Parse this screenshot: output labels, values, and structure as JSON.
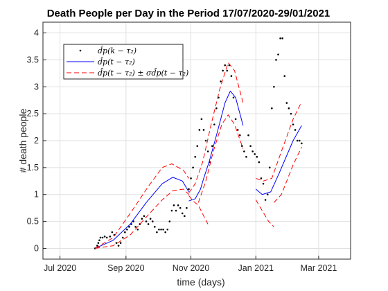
{
  "chart_data": {
    "type": "line",
    "title": "Death People per Day in the Period 17/07/2020-29/01/2021",
    "xlabel": "time (days)",
    "ylabel": "# death people",
    "xlim": [
      "2020-06-15",
      "2021-03-31"
    ],
    "ylim": [
      -0.2,
      4.2
    ],
    "x_ticks": [
      {
        "date": "2020-07-01",
        "label": "Jul 2020"
      },
      {
        "date": "2020-09-01",
        "label": "Sep 2020"
      },
      {
        "date": "2020-11-01",
        "label": "Nov 2020"
      },
      {
        "date": "2021-01-01",
        "label": "Jan 2021"
      },
      {
        "date": "2021-03-01",
        "label": "Mar 2021"
      }
    ],
    "y_ticks": [
      0,
      0.5,
      1,
      1.5,
      2,
      2.5,
      3,
      3.5,
      4
    ],
    "y_tick_labels": [
      "0",
      "0.5",
      "1",
      "1.5",
      "2",
      "2.5",
      "3",
      "3.5",
      "4"
    ],
    "grid": true,
    "legend": {
      "position": "top-left",
      "entries": [
        "d̄p(k − τ₂)",
        "d̄p(t − τ₂)",
        "d̄p(t − τ₂) ± σd̄p(t − τ₂)"
      ]
    },
    "series": [
      {
        "style": "markers",
        "color": "#000000",
        "points": [
          [
            "2020-08-03",
            0.0
          ],
          [
            "2020-08-05",
            0.05
          ],
          [
            "2020-08-06",
            0.1
          ],
          [
            "2020-08-07",
            0.15
          ],
          [
            "2020-08-08",
            0.2
          ],
          [
            "2020-08-10",
            0.2
          ],
          [
            "2020-08-12",
            0.22
          ],
          [
            "2020-08-14",
            0.2
          ],
          [
            "2020-08-17",
            0.22
          ],
          [
            "2020-08-19",
            0.3
          ],
          [
            "2020-08-21",
            0.25
          ],
          [
            "2020-08-23",
            0.1
          ],
          [
            "2020-08-25",
            0.05
          ],
          [
            "2020-08-27",
            0.1
          ],
          [
            "2020-08-29",
            0.2
          ],
          [
            "2020-08-31",
            0.3
          ],
          [
            "2020-09-02",
            0.35
          ],
          [
            "2020-09-04",
            0.4
          ],
          [
            "2020-09-06",
            0.45
          ],
          [
            "2020-09-08",
            0.5
          ],
          [
            "2020-09-10",
            0.4
          ],
          [
            "2020-09-12",
            0.35
          ],
          [
            "2020-09-14",
            0.45
          ],
          [
            "2020-09-16",
            0.55
          ],
          [
            "2020-09-18",
            0.6
          ],
          [
            "2020-09-20",
            0.5
          ],
          [
            "2020-09-22",
            0.45
          ],
          [
            "2020-09-24",
            0.55
          ],
          [
            "2020-09-26",
            0.5
          ],
          [
            "2020-09-28",
            0.4
          ],
          [
            "2020-09-30",
            0.3
          ],
          [
            "2020-10-02",
            0.35
          ],
          [
            "2020-10-04",
            0.35
          ],
          [
            "2020-10-06",
            0.35
          ],
          [
            "2020-10-08",
            0.3
          ],
          [
            "2020-10-10",
            0.35
          ],
          [
            "2020-10-12",
            0.5
          ],
          [
            "2020-10-14",
            0.7
          ],
          [
            "2020-10-16",
            0.8
          ],
          [
            "2020-10-18",
            0.7
          ],
          [
            "2020-10-20",
            0.8
          ],
          [
            "2020-10-22",
            0.75
          ],
          [
            "2020-10-24",
            0.65
          ],
          [
            "2020-10-26",
            0.6
          ],
          [
            "2020-10-28",
            0.75
          ],
          [
            "2020-10-30",
            1.1
          ],
          [
            "2020-11-01",
            1.3
          ],
          [
            "2020-11-03",
            1.5
          ],
          [
            "2020-11-05",
            1.7
          ],
          [
            "2020-11-07",
            1.9
          ],
          [
            "2020-11-09",
            2.2
          ],
          [
            "2020-11-11",
            2.4
          ],
          [
            "2020-11-13",
            2.2
          ],
          [
            "2020-11-15",
            2.0
          ],
          [
            "2020-11-17",
            1.8
          ],
          [
            "2020-11-19",
            1.6
          ],
          [
            "2020-11-21",
            1.9
          ],
          [
            "2020-11-23",
            2.3
          ],
          [
            "2020-11-25",
            2.6
          ],
          [
            "2020-11-27",
            2.8
          ],
          [
            "2020-11-29",
            3.1
          ],
          [
            "2020-12-01",
            3.3
          ],
          [
            "2020-12-03",
            3.4
          ],
          [
            "2020-12-05",
            3.3
          ],
          [
            "2020-12-07",
            3.4
          ],
          [
            "2020-12-09",
            3.2
          ],
          [
            "2020-12-11",
            2.8
          ],
          [
            "2020-12-13",
            2.4
          ],
          [
            "2020-12-15",
            2.2
          ],
          [
            "2020-12-17",
            2.1
          ],
          [
            "2020-12-19",
            1.9
          ],
          [
            "2020-12-21",
            1.8
          ],
          [
            "2020-12-23",
            1.7
          ],
          [
            "2020-12-25",
            2.1
          ],
          [
            "2020-12-27",
            1.9
          ],
          [
            "2020-12-29",
            1.8
          ],
          [
            "2020-12-31",
            1.75
          ],
          [
            "2021-01-02",
            1.7
          ],
          [
            "2021-01-04",
            1.6
          ],
          [
            "2021-01-06",
            1.3
          ],
          [
            "2021-01-08",
            1.2
          ],
          [
            "2021-01-10",
            0.9
          ],
          [
            "2021-01-12",
            1.0
          ],
          [
            "2021-01-14",
            1.5
          ],
          [
            "2021-01-16",
            2.6
          ],
          [
            "2021-01-18",
            3.0
          ],
          [
            "2021-01-20",
            3.5
          ],
          [
            "2021-01-22",
            3.6
          ],
          [
            "2021-01-24",
            3.9
          ],
          [
            "2021-01-26",
            3.9
          ],
          [
            "2021-01-28",
            3.2
          ],
          [
            "2021-01-30",
            2.7
          ],
          [
            "2021-02-01",
            2.6
          ],
          [
            "2021-02-03",
            2.5
          ],
          [
            "2021-02-05",
            2.3
          ],
          [
            "2021-02-07",
            2.2
          ],
          [
            "2021-02-09",
            2.0
          ],
          [
            "2021-02-11",
            2.0
          ],
          [
            "2021-02-13",
            1.95
          ]
        ]
      },
      {
        "style": "solid",
        "color": "#0000ff",
        "segments": [
          [
            [
              "2020-08-03",
              0.0
            ],
            [
              "2020-08-20",
              0.15
            ],
            [
              "2020-09-05",
              0.45
            ],
            [
              "2020-09-20",
              0.85
            ],
            [
              "2020-10-05",
              1.2
            ],
            [
              "2020-10-15",
              1.32
            ],
            [
              "2020-10-24",
              1.25
            ],
            [
              "2020-10-30",
              1.05
            ]
          ],
          [
            [
              "2020-10-30",
              0.88
            ],
            [
              "2020-11-05",
              0.92
            ],
            [
              "2020-11-10",
              1.1
            ],
            [
              "2020-11-13",
              1.3
            ],
            [
              "2020-11-18",
              1.6
            ],
            [
              "2020-11-25",
              2.1
            ],
            [
              "2020-12-03",
              2.7
            ],
            [
              "2020-12-08",
              2.92
            ],
            [
              "2020-12-13",
              2.8
            ],
            [
              "2020-12-20",
              2.28
            ]
          ],
          [
            [
              "2021-01-01",
              1.1
            ],
            [
              "2021-01-07",
              1.0
            ],
            [
              "2021-01-15",
              1.05
            ],
            [
              "2021-01-23",
              1.4
            ],
            [
              "2021-02-05",
              2.0
            ],
            [
              "2021-02-13",
              2.28
            ]
          ]
        ]
      },
      {
        "style": "dashed",
        "color": "#ff0000",
        "segments": [
          [
            [
              "2020-08-03",
              0.0
            ],
            [
              "2020-08-20",
              0.2
            ],
            [
              "2020-09-05",
              0.65
            ],
            [
              "2020-09-22",
              1.15
            ],
            [
              "2020-10-05",
              1.5
            ],
            [
              "2020-10-14",
              1.57
            ],
            [
              "2020-10-25",
              1.45
            ],
            [
              "2020-10-30",
              1.3
            ]
          ],
          [
            [
              "2020-08-03",
              0.0
            ],
            [
              "2020-08-20",
              0.05
            ],
            [
              "2020-09-05",
              0.25
            ],
            [
              "2020-09-20",
              0.58
            ],
            [
              "2020-10-05",
              0.9
            ],
            [
              "2020-10-15",
              1.07
            ],
            [
              "2020-10-25",
              1.1
            ],
            [
              "2020-10-30",
              1.0
            ]
          ],
          [
            [
              "2020-10-30",
              1.03
            ],
            [
              "2020-11-05",
              1.2
            ],
            [
              "2020-11-12",
              1.6
            ],
            [
              "2020-11-20",
              2.3
            ],
            [
              "2020-11-28",
              2.95
            ],
            [
              "2020-12-06",
              3.45
            ],
            [
              "2020-12-12",
              3.3
            ],
            [
              "2020-12-20",
              2.7
            ]
          ],
          [
            [
              "2020-10-30",
              0.98
            ],
            [
              "2020-11-03",
              0.88
            ],
            [
              "2020-11-08",
              0.8
            ],
            [
              "2020-11-13",
              0.6
            ],
            [
              "2020-11-17",
              0.45
            ]
          ],
          [
            [
              "2020-11-08",
              0.85
            ],
            [
              "2020-11-15",
              1.25
            ],
            [
              "2020-11-22",
              1.8
            ],
            [
              "2020-11-30",
              2.3
            ],
            [
              "2020-12-06",
              2.48
            ],
            [
              "2020-12-12",
              2.3
            ],
            [
              "2020-12-20",
              1.85
            ]
          ],
          [
            [
              "2021-01-01",
              1.3
            ],
            [
              "2021-01-08",
              1.25
            ],
            [
              "2021-01-16",
              1.3
            ],
            [
              "2021-01-25",
              1.8
            ],
            [
              "2021-02-05",
              2.4
            ],
            [
              "2021-02-13",
              2.72
            ]
          ],
          [
            [
              "2021-01-01",
              0.9
            ],
            [
              "2021-01-07",
              0.7
            ],
            [
              "2021-01-13",
              0.5
            ],
            [
              "2021-01-18",
              0.4
            ]
          ],
          [
            [
              "2021-01-18",
              0.85
            ],
            [
              "2021-01-25",
              1.0
            ],
            [
              "2021-02-05",
              1.55
            ],
            [
              "2021-02-13",
              1.88
            ]
          ]
        ]
      }
    ]
  }
}
